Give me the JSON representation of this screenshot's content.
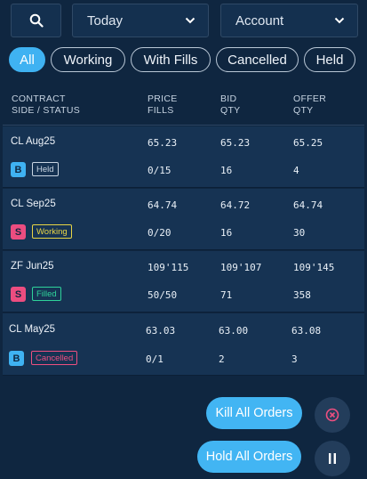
{
  "filters": {
    "date_value": "Today",
    "account_value": "Account"
  },
  "tabs": [
    {
      "label": "All",
      "active": true
    },
    {
      "label": "Working",
      "active": false
    },
    {
      "label": "With Fills",
      "active": false
    },
    {
      "label": "Cancelled",
      "active": false
    },
    {
      "label": "Held",
      "active": false
    }
  ],
  "columns": {
    "contract_l1": "CONTRACT",
    "contract_l2": "SIDE / STATUS",
    "price_l1": "PRICE",
    "price_l2": "FILLS",
    "bid_l1": "BID",
    "bid_l2": "QTY",
    "offer_l1": "OFFER",
    "offer_l2": "QTY"
  },
  "orders": [
    {
      "contract": "CL Aug25",
      "price": "65.23",
      "bid": "65.23",
      "offer": "65.25",
      "side": "B",
      "status": "Held",
      "fills": "0/15",
      "bid_qty": "16",
      "offer_qty": "4"
    },
    {
      "contract": "CL Sep25",
      "price": "64.74",
      "bid": "64.72",
      "offer": "64.74",
      "side": "S",
      "status": "Working",
      "fills": "0/20",
      "bid_qty": "16",
      "offer_qty": "30"
    },
    {
      "contract": "ZF Jun25",
      "price": "109'115",
      "bid": "109'107",
      "offer": "109'145",
      "side": "S",
      "status": "Filled",
      "fills": "50/50",
      "bid_qty": "71",
      "offer_qty": "358"
    },
    {
      "contract": "CL May25",
      "price": "63.03",
      "bid": "63.00",
      "offer": "63.08",
      "side": "B",
      "status": "Cancelled",
      "fills": "0/1",
      "bid_qty": "2",
      "offer_qty": "3"
    }
  ],
  "actions": {
    "kill_label": "Kill All Orders",
    "hold_label": "Hold All Orders"
  },
  "colors": {
    "background": "#0f2640",
    "accent": "#3fb2f2",
    "buy": "#3fb2f2",
    "sell": "#ec4d80",
    "held": "#c9d5e2",
    "working": "#e8d545",
    "filled": "#2fd39a",
    "cancelled": "#ee4f80"
  },
  "icons": {
    "search": "search-icon",
    "chevron": "chevron-down-icon",
    "cancel": "cancel-circle-icon",
    "pause": "pause-icon"
  }
}
